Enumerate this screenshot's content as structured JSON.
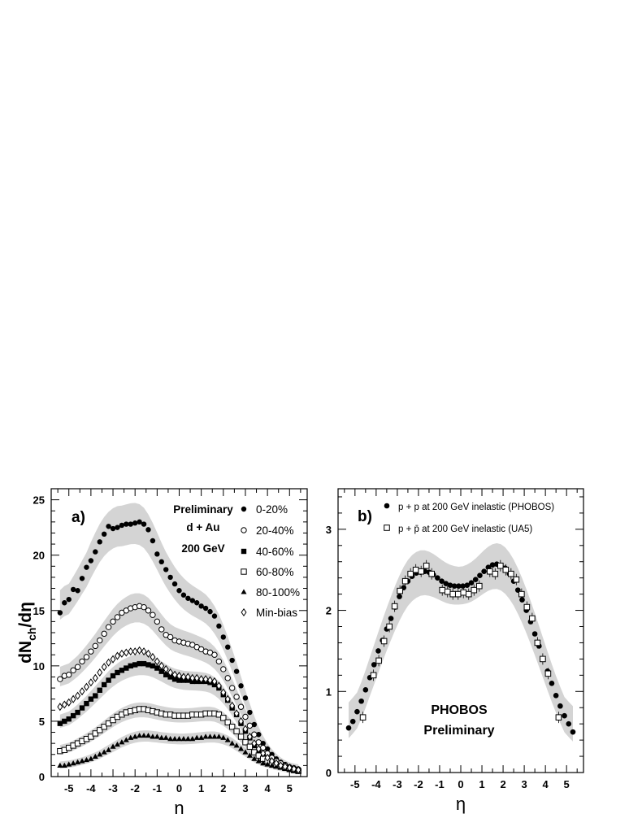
{
  "chart_data": [
    {
      "panel_label": "a)",
      "type": "scatter",
      "xlabel": "η",
      "ylabel_main": "dN",
      "ylabel_sub": "ch",
      "ylabel_tail": "/dη",
      "xlim": [
        -5.8,
        5.8
      ],
      "ylim": [
        0,
        26
      ],
      "xticks": [
        -5,
        -4,
        -3,
        -2,
        -1,
        0,
        1,
        2,
        3,
        4,
        5
      ],
      "yticks": [
        0,
        5,
        10,
        15,
        20,
        25
      ],
      "annotations": [
        "Preliminary",
        "d + Au",
        "200 GeV"
      ],
      "legend_position": "top-right",
      "band_color": "#d4d4d4",
      "series": [
        {
          "name": "0-20%",
          "marker": "filled-circle",
          "x": [
            -5.4,
            -5.2,
            -5.0,
            -4.8,
            -4.6,
            -4.4,
            -4.2,
            -4.0,
            -3.8,
            -3.6,
            -3.4,
            -3.2,
            -3.0,
            -2.8,
            -2.6,
            -2.4,
            -2.2,
            -2.0,
            -1.8,
            -1.6,
            -1.4,
            -1.2,
            -1.0,
            -0.8,
            -0.6,
            -0.4,
            -0.2,
            0.0,
            0.2,
            0.4,
            0.6,
            0.8,
            1.0,
            1.2,
            1.4,
            1.6,
            1.8,
            2.0,
            2.2,
            2.4,
            2.6,
            2.8,
            3.0,
            3.2,
            3.4,
            3.6,
            3.8,
            4.0,
            4.2,
            4.4,
            4.6,
            4.8,
            5.0,
            5.2,
            5.4
          ],
          "y": [
            14.8,
            15.7,
            16.0,
            16.9,
            16.8,
            17.9,
            18.9,
            19.5,
            20.3,
            21.2,
            21.9,
            22.6,
            22.4,
            22.5,
            22.7,
            22.8,
            22.8,
            22.9,
            23.0,
            22.8,
            22.3,
            21.3,
            20.1,
            19.4,
            18.7,
            18.0,
            17.4,
            16.8,
            16.4,
            16.1,
            15.9,
            15.7,
            15.4,
            15.2,
            14.9,
            14.5,
            13.6,
            12.6,
            11.7,
            10.5,
            9.5,
            8.2,
            7.1,
            5.8,
            4.7,
            3.8,
            3.0,
            2.5,
            2.0,
            1.6,
            1.3,
            1.1,
            0.9,
            0.8,
            0.7
          ]
        },
        {
          "name": "20-40%",
          "marker": "open-circle",
          "x": [
            -5.4,
            -5.2,
            -5.0,
            -4.8,
            -4.6,
            -4.4,
            -4.2,
            -4.0,
            -3.8,
            -3.6,
            -3.4,
            -3.2,
            -3.0,
            -2.8,
            -2.6,
            -2.4,
            -2.2,
            -2.0,
            -1.8,
            -1.6,
            -1.4,
            -1.2,
            -1.0,
            -0.8,
            -0.6,
            -0.4,
            -0.2,
            0.0,
            0.2,
            0.4,
            0.6,
            0.8,
            1.0,
            1.2,
            1.4,
            1.6,
            1.8,
            2.0,
            2.2,
            2.4,
            2.6,
            2.8,
            3.0,
            3.2,
            3.4,
            3.6,
            3.8,
            4.0,
            4.2,
            4.4,
            4.6,
            4.8,
            5.0,
            5.2,
            5.4
          ],
          "y": [
            8.8,
            9.1,
            9.2,
            9.6,
            9.9,
            10.4,
            10.8,
            11.3,
            11.8,
            12.3,
            12.9,
            13.5,
            14.0,
            14.4,
            14.8,
            15.0,
            15.2,
            15.3,
            15.4,
            15.3,
            15.0,
            14.6,
            14.0,
            13.3,
            12.8,
            12.6,
            12.3,
            12.2,
            12.1,
            12.0,
            11.9,
            11.7,
            11.5,
            11.3,
            11.2,
            11.0,
            10.4,
            9.7,
            8.9,
            8.0,
            7.2,
            6.3,
            5.4,
            4.6,
            3.8,
            3.1,
            2.6,
            2.1,
            1.7,
            1.4,
            1.2,
            1.0,
            0.8,
            0.7,
            0.6
          ]
        },
        {
          "name": "40-60%",
          "marker": "filled-square",
          "x": [
            -5.4,
            -5.2,
            -5.0,
            -4.8,
            -4.6,
            -4.4,
            -4.2,
            -4.0,
            -3.8,
            -3.6,
            -3.4,
            -3.2,
            -3.0,
            -2.8,
            -2.6,
            -2.4,
            -2.2,
            -2.0,
            -1.8,
            -1.6,
            -1.4,
            -1.2,
            -1.0,
            -0.8,
            -0.6,
            -0.4,
            -0.2,
            0.0,
            0.2,
            0.4,
            0.6,
            0.8,
            1.0,
            1.2,
            1.4,
            1.6,
            1.8,
            2.0,
            2.2,
            2.4,
            2.6,
            2.8,
            3.0,
            3.2,
            3.4,
            3.6,
            3.8,
            4.0,
            4.2,
            4.4,
            4.6,
            4.8,
            5.0,
            5.2,
            5.4
          ],
          "y": [
            4.8,
            5.0,
            5.2,
            5.5,
            5.8,
            6.2,
            6.6,
            7.0,
            7.3,
            7.8,
            8.3,
            8.7,
            9.1,
            9.4,
            9.6,
            9.8,
            10.0,
            10.1,
            10.2,
            10.2,
            10.1,
            10.0,
            9.8,
            9.5,
            9.2,
            9.0,
            8.8,
            8.7,
            8.7,
            8.7,
            8.6,
            8.6,
            8.6,
            8.6,
            8.5,
            8.3,
            8.0,
            7.4,
            6.9,
            6.2,
            5.6,
            4.8,
            4.1,
            3.5,
            2.8,
            2.3,
            1.9,
            1.5,
            1.3,
            1.1,
            0.9,
            0.8,
            0.7,
            0.6,
            0.5
          ]
        },
        {
          "name": "60-80%",
          "marker": "open-square",
          "x": [
            -5.4,
            -5.2,
            -5.0,
            -4.8,
            -4.6,
            -4.4,
            -4.2,
            -4.0,
            -3.8,
            -3.6,
            -3.4,
            -3.2,
            -3.0,
            -2.8,
            -2.6,
            -2.4,
            -2.2,
            -2.0,
            -1.8,
            -1.6,
            -1.4,
            -1.2,
            -1.0,
            -0.8,
            -0.6,
            -0.4,
            -0.2,
            0.0,
            0.2,
            0.4,
            0.6,
            0.8,
            1.0,
            1.2,
            1.4,
            1.6,
            1.8,
            2.0,
            2.2,
            2.4,
            2.6,
            2.8,
            3.0,
            3.2,
            3.4,
            3.6,
            3.8,
            4.0,
            4.2,
            4.4,
            4.6,
            4.8,
            5.0,
            5.2,
            5.4
          ],
          "y": [
            2.3,
            2.4,
            2.6,
            2.8,
            3.0,
            3.2,
            3.4,
            3.6,
            3.9,
            4.2,
            4.5,
            4.8,
            5.1,
            5.4,
            5.6,
            5.8,
            5.9,
            6.0,
            6.1,
            6.1,
            6.0,
            5.9,
            5.8,
            5.7,
            5.6,
            5.6,
            5.5,
            5.5,
            5.5,
            5.5,
            5.6,
            5.6,
            5.6,
            5.7,
            5.7,
            5.7,
            5.6,
            5.3,
            4.9,
            4.5,
            4.1,
            3.6,
            3.1,
            2.7,
            2.2,
            1.9,
            1.6,
            1.4,
            1.2,
            1.0,
            0.9,
            0.8,
            0.7,
            0.6,
            0.5
          ]
        },
        {
          "name": "80-100%",
          "marker": "filled-triangle",
          "x": [
            -5.4,
            -5.2,
            -5.0,
            -4.8,
            -4.6,
            -4.4,
            -4.2,
            -4.0,
            -3.8,
            -3.6,
            -3.4,
            -3.2,
            -3.0,
            -2.8,
            -2.6,
            -2.4,
            -2.2,
            -2.0,
            -1.8,
            -1.6,
            -1.4,
            -1.2,
            -1.0,
            -0.8,
            -0.6,
            -0.4,
            -0.2,
            0.0,
            0.2,
            0.4,
            0.6,
            0.8,
            1.0,
            1.2,
            1.4,
            1.6,
            1.8,
            2.0,
            2.2,
            2.4,
            2.6,
            2.8,
            3.0,
            3.2,
            3.4,
            3.6,
            3.8,
            4.0,
            4.2,
            4.4,
            4.6,
            4.8,
            5.0,
            5.2,
            5.4
          ],
          "y": [
            1.0,
            1.0,
            1.1,
            1.2,
            1.3,
            1.4,
            1.5,
            1.6,
            1.8,
            2.0,
            2.2,
            2.4,
            2.7,
            2.9,
            3.1,
            3.3,
            3.5,
            3.6,
            3.7,
            3.7,
            3.7,
            3.6,
            3.6,
            3.5,
            3.5,
            3.4,
            3.4,
            3.4,
            3.4,
            3.4,
            3.4,
            3.5,
            3.5,
            3.6,
            3.6,
            3.6,
            3.6,
            3.5,
            3.3,
            3.0,
            2.8,
            2.5,
            2.2,
            1.9,
            1.6,
            1.4,
            1.2,
            1.1,
            1.0,
            0.9,
            0.8,
            0.7,
            0.6,
            0.5,
            0.5
          ]
        },
        {
          "name": "Min-bias",
          "marker": "open-diamond",
          "x": [
            -5.4,
            -5.2,
            -5.0,
            -4.8,
            -4.6,
            -4.4,
            -4.2,
            -4.0,
            -3.8,
            -3.6,
            -3.4,
            -3.2,
            -3.0,
            -2.8,
            -2.6,
            -2.4,
            -2.2,
            -2.0,
            -1.8,
            -1.6,
            -1.4,
            -1.2,
            -1.0,
            -0.8,
            -0.6,
            -0.4,
            -0.2,
            0.0,
            0.2,
            0.4,
            0.6,
            0.8,
            1.0,
            1.2,
            1.4,
            1.6,
            1.8,
            2.0,
            2.2,
            2.4,
            2.6,
            2.8,
            3.0,
            3.2,
            3.4,
            3.6,
            3.8,
            4.0,
            4.2,
            4.4,
            4.6,
            4.8,
            5.0,
            5.2,
            5.4
          ],
          "y": [
            6.3,
            6.5,
            6.7,
            7.0,
            7.3,
            7.7,
            8.1,
            8.5,
            8.9,
            9.4,
            9.9,
            10.3,
            10.6,
            10.9,
            11.1,
            11.2,
            11.3,
            11.3,
            11.4,
            11.3,
            11.1,
            10.8,
            10.4,
            10.0,
            9.7,
            9.4,
            9.2,
            9.1,
            9.0,
            9.0,
            8.9,
            8.9,
            8.8,
            8.8,
            8.7,
            8.6,
            8.2,
            7.6,
            7.0,
            6.4,
            5.7,
            5.0,
            4.3,
            3.6,
            3.0,
            2.5,
            2.1,
            1.7,
            1.4,
            1.2,
            1.0,
            0.9,
            0.8,
            0.7,
            0.6
          ]
        }
      ]
    },
    {
      "panel_label": "b)",
      "type": "scatter",
      "xlabel": "η",
      "xlim": [
        -5.8,
        5.8
      ],
      "ylim": [
        0,
        3.5
      ],
      "xticks": [
        -5,
        -4,
        -3,
        -2,
        -1,
        0,
        1,
        2,
        3,
        4,
        5
      ],
      "yticks": [
        0,
        1,
        2,
        3
      ],
      "annotations": [
        "PHOBOS",
        "Preliminary"
      ],
      "legend_position": "top-left",
      "band_color": "#d4d4d4",
      "series": [
        {
          "name": "p + p at 200 GeV inelastic (PHOBOS)",
          "marker": "filled-circle",
          "x": [
            -5.3,
            -5.1,
            -4.9,
            -4.7,
            -4.5,
            -4.3,
            -4.1,
            -3.9,
            -3.7,
            -3.5,
            -3.3,
            -3.1,
            -2.9,
            -2.7,
            -2.5,
            -2.3,
            -2.1,
            -1.9,
            -1.7,
            -1.5,
            -1.3,
            -1.1,
            -0.9,
            -0.7,
            -0.5,
            -0.3,
            -0.1,
            0.1,
            0.3,
            0.5,
            0.7,
            0.9,
            1.1,
            1.3,
            1.5,
            1.7,
            1.9,
            2.1,
            2.3,
            2.5,
            2.7,
            2.9,
            3.1,
            3.3,
            3.5,
            3.7,
            3.9,
            4.1,
            4.3,
            4.5,
            4.7,
            4.9,
            5.1,
            5.3
          ],
          "y": [
            0.55,
            0.63,
            0.75,
            0.88,
            1.02,
            1.17,
            1.33,
            1.5,
            1.63,
            1.77,
            1.9,
            2.04,
            2.17,
            2.28,
            2.36,
            2.42,
            2.46,
            2.47,
            2.48,
            2.47,
            2.44,
            2.4,
            2.36,
            2.33,
            2.31,
            2.3,
            2.3,
            2.3,
            2.31,
            2.34,
            2.38,
            2.43,
            2.48,
            2.53,
            2.56,
            2.57,
            2.55,
            2.52,
            2.45,
            2.36,
            2.25,
            2.13,
            2.0,
            1.86,
            1.71,
            1.56,
            1.4,
            1.25,
            1.1,
            0.95,
            0.82,
            0.7,
            0.6,
            0.5
          ]
        },
        {
          "name": "p + p̄ at 200 GeV inelastic (UA5)",
          "marker": "open-square",
          "x": [
            -4.625,
            -4.125,
            -3.875,
            -3.625,
            -3.375,
            -3.125,
            -2.875,
            -2.625,
            -2.375,
            -2.125,
            -1.875,
            -1.625,
            -1.375,
            -0.875,
            -0.625,
            -0.375,
            -0.125,
            0.125,
            0.375,
            0.625,
            0.875,
            1.375,
            1.625,
            1.875,
            2.125,
            2.375,
            2.625,
            2.875,
            3.125,
            3.375,
            3.625,
            3.875,
            4.125,
            4.625
          ],
          "y": [
            0.68,
            1.2,
            1.38,
            1.62,
            1.8,
            2.05,
            2.24,
            2.36,
            2.45,
            2.5,
            2.48,
            2.55,
            2.45,
            2.25,
            2.23,
            2.2,
            2.2,
            2.22,
            2.2,
            2.25,
            2.3,
            2.48,
            2.45,
            2.55,
            2.5,
            2.45,
            2.38,
            2.2,
            2.04,
            1.9,
            1.6,
            1.4,
            1.22,
            0.68
          ]
        }
      ]
    }
  ]
}
